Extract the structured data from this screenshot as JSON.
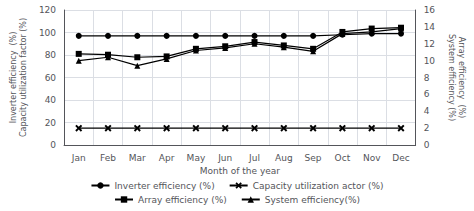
{
  "chart_data": {
    "type": "line",
    "categories": [
      "Jan",
      "Feb",
      "Mar",
      "Apr",
      "May",
      "Jun",
      "Jul",
      "Aug",
      "Sep",
      "Oct",
      "Nov",
      "Dec"
    ],
    "xlabel": "Month of the year",
    "ylabel": "Inverter efficiency  (%)\nCapacity utilization factor (%)",
    "y2label": "Array efficiency  (%)\nSystem efficiency (%)",
    "ylim": [
      0,
      120
    ],
    "yticks": [
      0,
      20,
      40,
      60,
      80,
      100,
      120
    ],
    "y2lim": [
      0,
      16
    ],
    "y2ticks": [
      0,
      2,
      4,
      6,
      8,
      10,
      12,
      14,
      16
    ],
    "grid": true,
    "legend": "bottom",
    "series": [
      {
        "name": "Inverter efficiency (%)",
        "color": "#000000",
        "marker": "circle",
        "values": [
          97,
          97,
          97,
          97,
          97,
          97,
          97,
          97,
          97,
          98,
          99,
          99
        ]
      },
      {
        "name": "Capacity utilization actor (%)",
        "color": "#000000",
        "marker": "x",
        "values": [
          15,
          15,
          15,
          15,
          15,
          15,
          15,
          15,
          15,
          15,
          15,
          15
        ]
      },
      {
        "name": "Array efficiency (%)",
        "color": "#000000",
        "marker": "square",
        "axis": "y2",
        "values": [
          10.8,
          10.7,
          10.4,
          10.5,
          11.4,
          11.7,
          12.2,
          11.8,
          11.4,
          13.4,
          13.8,
          13.9
        ]
      },
      {
        "name": "System efficiency(%)",
        "color": "#000000",
        "marker": "triangle",
        "axis": "y2",
        "values": [
          10.0,
          10.4,
          9.4,
          10.2,
          11.2,
          11.5,
          12.0,
          11.6,
          11.1,
          13.2,
          13.4,
          13.8
        ]
      }
    ]
  }
}
